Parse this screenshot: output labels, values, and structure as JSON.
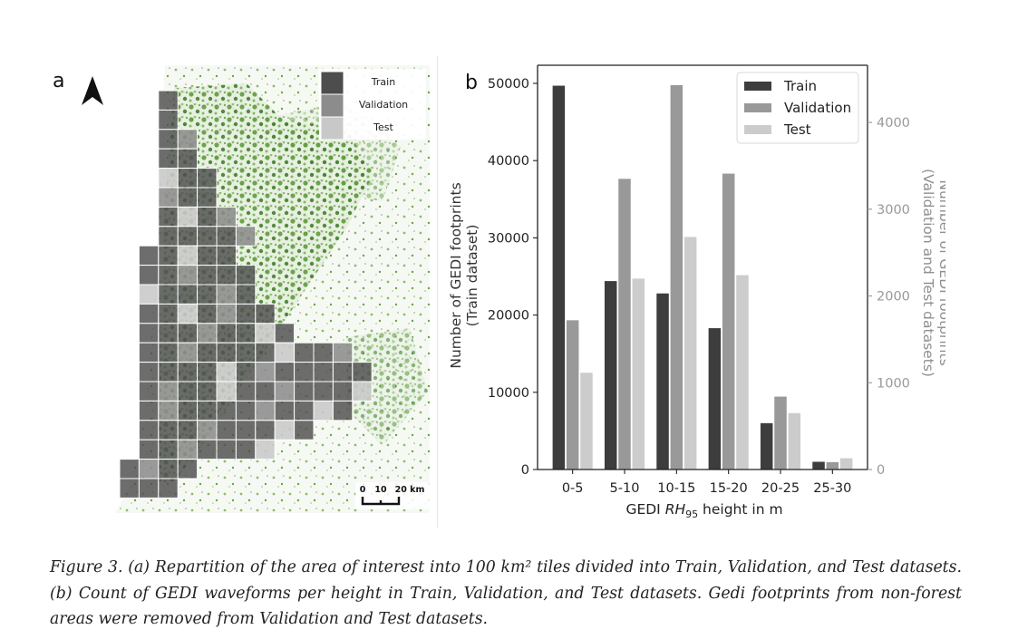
{
  "panel_a": {
    "label": "a",
    "legend": [
      "Train",
      "Validation",
      "Test"
    ],
    "scale_ticks": [
      "0",
      "10",
      "20 km"
    ],
    "colors": {
      "train": "#4d4d4d",
      "validation": "#8c8c8c",
      "test": "#c8c8c8",
      "forest": "#3f8a2a"
    }
  },
  "panel_b": {
    "label": "b"
  },
  "chart_data": {
    "type": "bar",
    "categories": [
      "0-5",
      "5-10",
      "10-15",
      "15-20",
      "20-25",
      "25-30"
    ],
    "series": [
      {
        "name": "Train",
        "axis": "left",
        "color": "#3d3d3d",
        "values": [
          49700,
          24400,
          22800,
          18300,
          6000,
          1000
        ]
      },
      {
        "name": "Validation",
        "axis": "right",
        "color": "#999999",
        "values": [
          1720,
          3350,
          4430,
          3410,
          840,
          85
        ]
      },
      {
        "name": "Test",
        "axis": "right",
        "color": "#cccccc",
        "values": [
          1115,
          2200,
          2680,
          2240,
          650,
          130
        ]
      }
    ],
    "xlabel": "GEDI RH95 height in m",
    "xlabel_parts": {
      "pre": "GEDI ",
      "italic": "RH",
      "sub": "95",
      "post": " height in m"
    },
    "ylabel": [
      "Number of GEDI footprints",
      "(Train dataset)"
    ],
    "y2label": [
      "Number of GEDI footprints",
      "(Validation and Test datasets)"
    ],
    "ylim": [
      0,
      50000
    ],
    "y2lim": [
      0,
      4450
    ],
    "yticks": [
      "0",
      "10000",
      "20000",
      "30000",
      "40000",
      "50000"
    ],
    "y2ticks": [
      "0",
      "1000",
      "2000",
      "3000",
      "4000"
    ],
    "legend_position": "top-right",
    "grid": false
  },
  "caption": {
    "text": "Figure 3. (a) Repartition of the area of interest into 100 km² tiles divided into Train, Validation, and Test datasets. (b) Count of GEDI waveforms per height in Train, Validation, and Test datasets. Gedi footprints from non-forest areas were removed from Validation and Test datasets."
  }
}
